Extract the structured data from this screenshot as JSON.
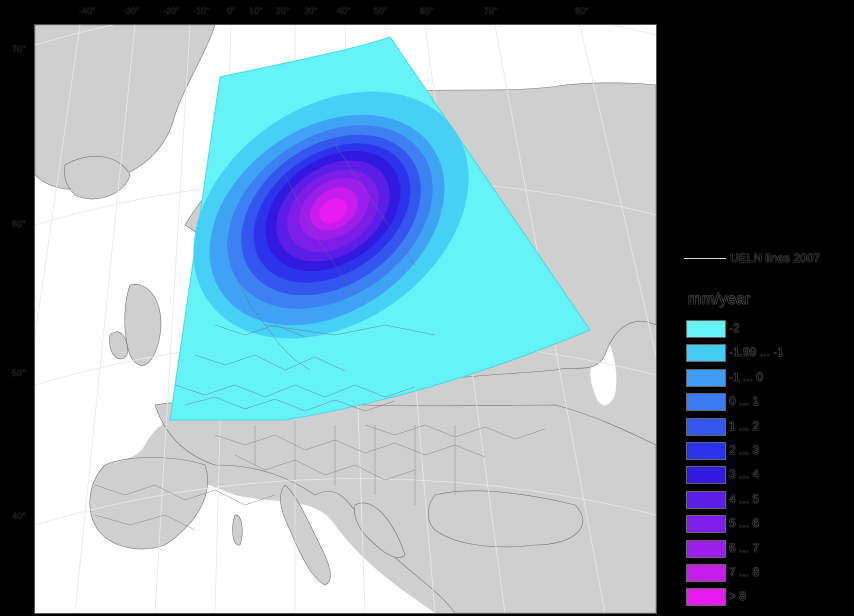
{
  "map": {
    "lon_labels": [
      "-40°",
      "-30°",
      "-20°",
      "-10°",
      "0°",
      "10°",
      "20°",
      "30°",
      "40°",
      "50°",
      "60°",
      "70°",
      "80°"
    ],
    "lat_labels": [
      "70°",
      "60°",
      "50°",
      "40°"
    ]
  },
  "legend": {
    "line_label": "UELN lines 2007",
    "unit": "mm/year",
    "classes": [
      {
        "label": "-2",
        "color": "#66f3f7"
      },
      {
        "label": "-1.99 ... -1",
        "color": "#44ccf4"
      },
      {
        "label": "-1 ... 0",
        "color": "#3f9cf3"
      },
      {
        "label": "0 ... 1",
        "color": "#3c7cf2"
      },
      {
        "label": "1 ... 2",
        "color": "#3455ee"
      },
      {
        "label": "2 ... 3",
        "color": "#2b34ea"
      },
      {
        "label": "3 ... 4",
        "color": "#3219e0"
      },
      {
        "label": "4 ... 5",
        "color": "#5a1ee6"
      },
      {
        "label": "5 ... 6",
        "color": "#7c1ee8"
      },
      {
        "label": "6 ... 7",
        "color": "#9c1eeb"
      },
      {
        "label": "7 ... 8",
        "color": "#c61ded"
      },
      {
        "label": "> 8",
        "color": "#e81cf2"
      }
    ]
  },
  "colors": {
    "land": "#cfcfcf",
    "sea": "#ffffff",
    "background": "#000000"
  }
}
